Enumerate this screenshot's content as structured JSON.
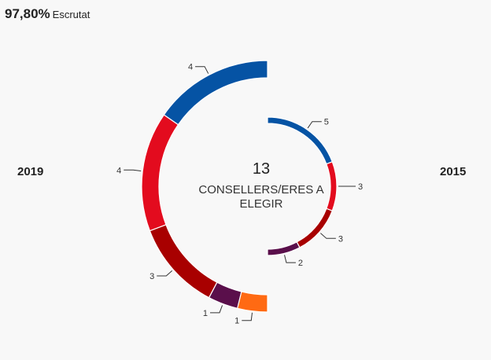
{
  "header": {
    "scrutiny_value": "97,80%",
    "scrutiny_label": "Escrutat"
  },
  "years": {
    "left": "2019",
    "right": "2015"
  },
  "center": {
    "total": "13",
    "caption": "CONSELLERS/ERES A ELEGIR"
  },
  "chart_data": [
    {
      "type": "pie",
      "title": "2019",
      "values": [
        4,
        4,
        3,
        1,
        1
      ],
      "labels": [
        "4",
        "4",
        "3",
        "1",
        "1"
      ],
      "colors": [
        "#0553a4",
        "#e30b1e",
        "#a80000",
        "#5a0f4b",
        "#ff6a13"
      ]
    },
    {
      "type": "pie",
      "title": "2015",
      "values": [
        5,
        3,
        3,
        2
      ],
      "labels": [
        "5",
        "3",
        "3",
        "2"
      ],
      "colors": [
        "#0553a4",
        "#e30b1e",
        "#a80000",
        "#5a0f4b"
      ]
    }
  ]
}
